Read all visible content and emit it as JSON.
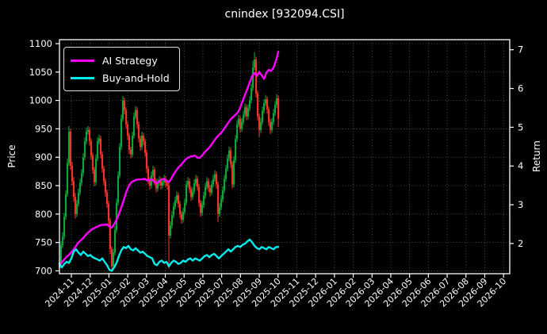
{
  "chart_data": {
    "type": "candlestick+line",
    "title": "cnindex [932094.CSI]",
    "ylabel_left": "Price",
    "ylabel_right": "Return",
    "x_unit": "months since 2024-11",
    "x_ticks": [
      "2024-11",
      "2024-12",
      "2025-01",
      "2025-02",
      "2025-03",
      "2025-04",
      "2025-05",
      "2025-06",
      "2025-07",
      "2025-08",
      "2025-09",
      "2025-10",
      "2025-11",
      "2025-12",
      "2026-01",
      "2026-02",
      "2026-03",
      "2026-04",
      "2026-05",
      "2026-06",
      "2026-07",
      "2026-08",
      "2026-09",
      "2026-10"
    ],
    "xlim": [
      -0.633,
      23.33
    ],
    "price_ticks": [
      700,
      750,
      800,
      850,
      900,
      950,
      1000,
      1050,
      1100
    ],
    "price_lim": [
      695,
      1107
    ],
    "return_ticks": [
      2,
      3,
      4,
      5,
      6,
      7
    ],
    "return_lim": [
      1.22,
      7.26
    ],
    "grid": true,
    "legend_position": "upper left",
    "colors": {
      "background": "#000000",
      "text": "#ffffff",
      "spine": "#ffffff",
      "grid": "#5a5a5a",
      "up": "#0fa43c",
      "down": "#f23428"
    },
    "candles": {
      "x0": -0.633,
      "dx": 0.0844,
      "closes": [
        715,
        745,
        760,
        795,
        835,
        890,
        945,
        885,
        858,
        830,
        800,
        818,
        838,
        855,
        872,
        900,
        928,
        945,
        948,
        928,
        903,
        878,
        856,
        898,
        928,
        933,
        905,
        880,
        858,
        838,
        818,
        788,
        738,
        708,
        732,
        772,
        820,
        868,
        918,
        968,
        1000,
        983,
        958,
        938,
        913,
        905,
        938,
        972,
        983,
        958,
        933,
        918,
        938,
        928,
        908,
        880,
        860,
        850,
        868,
        878,
        858,
        845,
        855,
        860,
        850,
        856,
        862,
        855,
        850,
        762,
        780,
        798,
        813,
        824,
        833,
        818,
        800,
        790,
        804,
        820,
        852,
        858,
        844,
        830,
        840,
        854,
        862,
        848,
        820,
        802,
        816,
        832,
        848,
        858,
        846,
        838,
        852,
        862,
        870,
        852,
        800,
        812,
        826,
        842,
        862,
        880,
        898,
        912,
        888,
        852,
        895,
        932,
        958,
        968,
        950,
        962,
        975,
        988,
        972,
        986,
        1000,
        1022,
        1058,
        1072,
        1012,
        972,
        948,
        962,
        982,
        995,
        1002,
        984,
        962,
        948,
        962,
        978,
        992,
        1004,
        968
      ],
      "highs": [
        722,
        752,
        768,
        802,
        842,
        898,
        955,
        950,
        892,
        865,
        837,
        825,
        845,
        862,
        879,
        907,
        935,
        952,
        955,
        953,
        933,
        908,
        883,
        905,
        935,
        940,
        938,
        910,
        885,
        863,
        843,
        823,
        793,
        743,
        739,
        779,
        827,
        875,
        925,
        975,
        1008,
        1005,
        988,
        963,
        943,
        918,
        945,
        979,
        990,
        988,
        963,
        938,
        945,
        943,
        933,
        913,
        885,
        865,
        875,
        885,
        883,
        863,
        862,
        867,
        865,
        863,
        869,
        867,
        860,
        855,
        787,
        805,
        820,
        831,
        840,
        838,
        823,
        805,
        811,
        827,
        859,
        865,
        863,
        849,
        847,
        861,
        869,
        867,
        853,
        825,
        823,
        839,
        855,
        865,
        863,
        851,
        859,
        869,
        877,
        875,
        857,
        819,
        833,
        849,
        869,
        887,
        905,
        919,
        917,
        893,
        902,
        939,
        965,
        975,
        973,
        969,
        982,
        995,
        993,
        993,
        1007,
        1029,
        1070,
        1085,
        1077,
        1017,
        977,
        969,
        989,
        1002,
        1009,
        1007,
        989,
        967,
        969,
        985,
        999,
        1011,
        1009
      ],
      "lows": [
        700,
        710,
        740,
        755,
        790,
        830,
        885,
        878,
        850,
        822,
        792,
        795,
        813,
        833,
        850,
        867,
        895,
        923,
        940,
        921,
        896,
        871,
        849,
        851,
        893,
        923,
        898,
        873,
        851,
        831,
        811,
        780,
        730,
        702,
        703,
        727,
        767,
        815,
        863,
        913,
        963,
        976,
        951,
        931,
        906,
        898,
        900,
        933,
        967,
        951,
        926,
        911,
        913,
        921,
        901,
        873,
        853,
        843,
        845,
        863,
        851,
        838,
        840,
        850,
        843,
        845,
        851,
        848,
        843,
        704,
        757,
        775,
        793,
        808,
        819,
        811,
        793,
        783,
        785,
        799,
        815,
        847,
        837,
        823,
        825,
        835,
        849,
        841,
        813,
        795,
        797,
        811,
        827,
        843,
        839,
        831,
        833,
        847,
        857,
        845,
        786,
        795,
        807,
        821,
        837,
        857,
        875,
        893,
        881,
        845,
        847,
        890,
        927,
        953,
        943,
        945,
        957,
        970,
        965,
        967,
        981,
        995,
        1017,
        1053,
        1005,
        965,
        935,
        943,
        957,
        977,
        990,
        977,
        955,
        941,
        943,
        957,
        973,
        987,
        953
      ]
    },
    "series": [
      {
        "name": "AI Strategy",
        "color": "#ff00ff",
        "axis": "price",
        "x0": -0.633,
        "dx": 0.1266,
        "values": [
          710,
          715,
          720,
          725,
          728,
          733,
          738,
          744,
          750,
          754,
          758,
          763,
          767,
          771,
          774,
          776,
          778,
          780,
          781,
          781,
          782,
          778,
          776,
          782,
          790,
          800,
          812,
          824,
          838,
          848,
          855,
          858,
          860,
          861,
          861,
          861,
          862,
          859,
          860,
          861,
          856,
          854,
          858,
          861,
          862,
          859,
          856,
          862,
          870,
          876,
          882,
          886,
          891,
          896,
          899,
          901,
          902,
          903,
          899,
          899,
          903,
          909,
          913,
          917,
          923,
          929,
          935,
          939,
          943,
          949,
          955,
          961,
          967,
          971,
          975,
          979,
          988,
          999,
          1010,
          1021,
          1032,
          1043,
          1048,
          1043,
          1050,
          1044,
          1038,
          1049,
          1054,
          1052,
          1058,
          1070,
          1086
        ]
      },
      {
        "name": "Buy-and-Hold",
        "color": "#00eded",
        "axis": "price",
        "x0": -0.633,
        "dx": 0.1266,
        "values": [
          712,
          706,
          712,
          716,
          714,
          722,
          734,
          738,
          732,
          728,
          734,
          730,
          726,
          728,
          724,
          722,
          720,
          718,
          722,
          716,
          710,
          702,
          700,
          706,
          714,
          726,
          736,
          742,
          740,
          744,
          738,
          736,
          740,
          736,
          732,
          734,
          730,
          726,
          724,
          722,
          712,
          710,
          716,
          718,
          714,
          716,
          708,
          714,
          718,
          716,
          712,
          714,
          718,
          716,
          720,
          722,
          718,
          722,
          720,
          718,
          722,
          726,
          728,
          724,
          728,
          730,
          726,
          722,
          726,
          730,
          734,
          738,
          734,
          738,
          742,
          744,
          742,
          746,
          748,
          752,
          755,
          750,
          744,
          740,
          738,
          742,
          740,
          738,
          742,
          740,
          738,
          742,
          742
        ]
      }
    ]
  }
}
